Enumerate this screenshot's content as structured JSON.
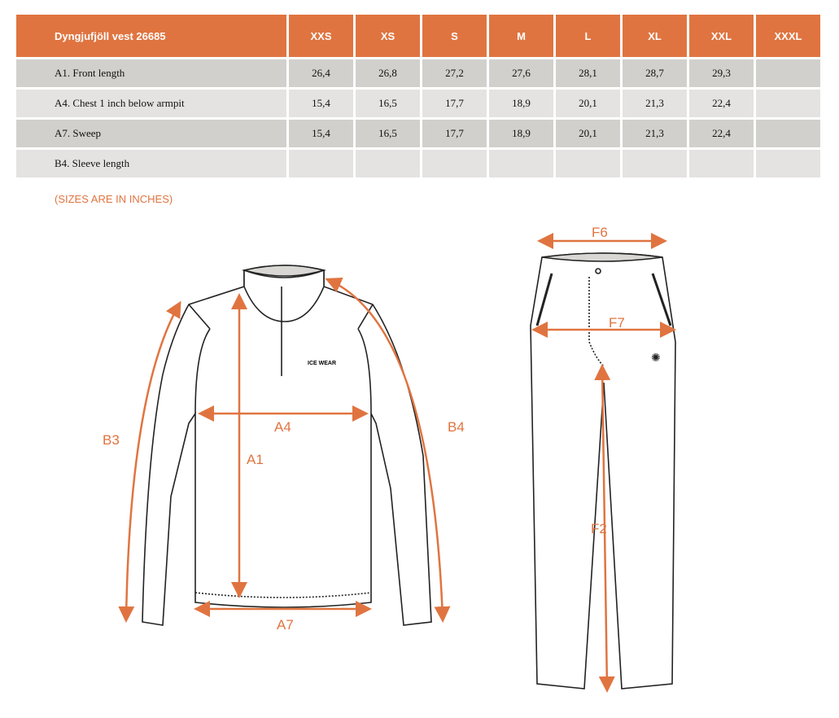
{
  "table": {
    "title": "Dyngjufjöll vest 26685",
    "sizes": [
      "XXS",
      "XS",
      "S",
      "M",
      "L",
      "XL",
      "XXL",
      "XXXL"
    ],
    "rows": [
      {
        "label": "A1. Front length",
        "values": [
          "26,4",
          "26,8",
          "27,2",
          "27,6",
          "28,1",
          "28,7",
          "29,3",
          ""
        ]
      },
      {
        "label": "A4. Chest 1 inch below armpit",
        "values": [
          "15,4",
          "16,5",
          "17,7",
          "18,9",
          "20,1",
          "21,3",
          "22,4",
          ""
        ]
      },
      {
        "label": "A7. Sweep",
        "values": [
          "15,4",
          "16,5",
          "17,7",
          "18,9",
          "20,1",
          "21,3",
          "22,4",
          ""
        ]
      },
      {
        "label": "B4. Sleeve length",
        "values": [
          "",
          "",
          "",
          "",
          "",
          "",
          "",
          ""
        ]
      }
    ]
  },
  "note": "(SIZES ARE IN INCHES)",
  "diagram": {
    "labels": {
      "a1": "A1",
      "a4": "A4",
      "a7": "A7",
      "b3": "B3",
      "b4": "B4",
      "f2": "F2",
      "f6": "F6",
      "f7": "F7"
    },
    "logo": "ICE WEAR",
    "accent": "#e07440"
  }
}
